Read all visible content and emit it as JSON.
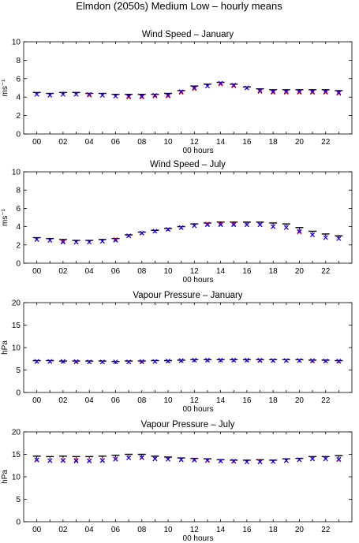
{
  "title": "Elmdon (2050s) Medium Low – hourly means",
  "chart_data": [
    {
      "type": "scatter",
      "title": "Wind Speed – January",
      "xlabel": "00 hours",
      "ylabel": "ms⁻¹",
      "ylim": [
        0,
        10
      ],
      "yticks": [
        0,
        2,
        4,
        6,
        8,
        10
      ],
      "xlim": [
        -1,
        24
      ],
      "x": [
        0,
        1,
        2,
        3,
        4,
        5,
        6,
        7,
        8,
        9,
        10,
        11,
        12,
        13,
        14,
        15,
        16,
        17,
        18,
        19,
        20,
        21,
        22,
        23
      ],
      "xtick_labels": [
        "00",
        "02",
        "04",
        "06",
        "08",
        "10",
        "12",
        "14",
        "16",
        "18",
        "20",
        "22"
      ],
      "series": [
        {
          "marker": "bar",
          "color": "#000000",
          "values": [
            4.5,
            4.4,
            4.5,
            4.5,
            4.4,
            4.4,
            4.3,
            4.3,
            4.3,
            4.3,
            4.4,
            4.7,
            5.2,
            5.4,
            5.6,
            5.4,
            5.1,
            4.9,
            4.8,
            4.8,
            4.8,
            4.8,
            4.8,
            4.7
          ]
        },
        {
          "marker": "x",
          "color": "#ff0000",
          "values": [
            4.3,
            4.2,
            4.3,
            4.3,
            4.2,
            4.2,
            4.1,
            4.0,
            4.0,
            4.1,
            4.1,
            4.5,
            4.9,
            5.2,
            5.4,
            5.2,
            5.0,
            4.6,
            4.5,
            4.5,
            4.5,
            4.5,
            4.5,
            4.4
          ]
        },
        {
          "marker": "x",
          "color": "#0000ff",
          "values": [
            4.3,
            4.2,
            4.3,
            4.3,
            4.3,
            4.2,
            4.1,
            4.1,
            4.1,
            4.2,
            4.2,
            4.6,
            5.0,
            5.2,
            5.5,
            5.3,
            5.0,
            4.7,
            4.6,
            4.6,
            4.6,
            4.6,
            4.6,
            4.5
          ]
        }
      ]
    },
    {
      "type": "scatter",
      "title": "Wind Speed – July",
      "xlabel": "00 hours",
      "ylabel": "ms⁻¹",
      "ylim": [
        0,
        10
      ],
      "yticks": [
        0,
        2,
        4,
        6,
        8,
        10
      ],
      "xlim": [
        -1,
        24
      ],
      "x": [
        0,
        1,
        2,
        3,
        4,
        5,
        6,
        7,
        8,
        9,
        10,
        11,
        12,
        13,
        14,
        15,
        16,
        17,
        18,
        19,
        20,
        21,
        22,
        23
      ],
      "xtick_labels": [
        "00",
        "02",
        "04",
        "06",
        "08",
        "10",
        "12",
        "14",
        "16",
        "18",
        "20",
        "22"
      ],
      "series": [
        {
          "marker": "bar",
          "color": "#000000",
          "values": [
            2.8,
            2.7,
            2.6,
            2.5,
            2.5,
            2.6,
            2.7,
            3.1,
            3.4,
            3.6,
            3.8,
            4.0,
            4.3,
            4.4,
            4.5,
            4.5,
            4.5,
            4.5,
            4.4,
            4.3,
            3.9,
            3.5,
            3.2,
            3.0
          ]
        },
        {
          "marker": "x",
          "color": "#ff0000",
          "values": [
            2.6,
            2.5,
            2.4,
            2.3,
            2.3,
            2.4,
            2.6,
            3.0,
            3.3,
            3.5,
            3.7,
            3.9,
            4.1,
            4.3,
            4.3,
            4.3,
            4.2,
            4.2,
            4.0,
            3.9,
            3.4,
            3.1,
            2.8,
            2.7
          ]
        },
        {
          "marker": "x",
          "color": "#0000ff",
          "values": [
            2.6,
            2.5,
            2.3,
            2.3,
            2.3,
            2.4,
            2.5,
            3.0,
            3.3,
            3.5,
            3.7,
            3.9,
            4.1,
            4.2,
            4.2,
            4.2,
            4.2,
            4.2,
            4.0,
            3.9,
            3.5,
            3.1,
            2.8,
            2.7
          ]
        }
      ]
    },
    {
      "type": "scatter",
      "title": "Vapour Pressure – January",
      "xlabel": "00 hours",
      "ylabel": "hPa",
      "ylim": [
        0,
        20
      ],
      "yticks": [
        0,
        5,
        10,
        15,
        20
      ],
      "xlim": [
        -1,
        24
      ],
      "x": [
        0,
        1,
        2,
        3,
        4,
        5,
        6,
        7,
        8,
        9,
        10,
        11,
        12,
        13,
        14,
        15,
        16,
        17,
        18,
        19,
        20,
        21,
        22,
        23
      ],
      "xtick_labels": [
        "00",
        "02",
        "04",
        "06",
        "08",
        "10",
        "12",
        "14",
        "16",
        "18",
        "20",
        "22"
      ],
      "series": [
        {
          "marker": "bar",
          "color": "#000000",
          "values": [
            7.1,
            7.1,
            7.0,
            7.0,
            7.0,
            7.0,
            6.9,
            7.0,
            7.0,
            7.1,
            7.1,
            7.2,
            7.3,
            7.3,
            7.3,
            7.3,
            7.3,
            7.3,
            7.3,
            7.3,
            7.3,
            7.2,
            7.2,
            7.1
          ]
        },
        {
          "marker": "x",
          "color": "#ff0000",
          "values": [
            6.9,
            6.9,
            6.9,
            6.8,
            6.8,
            6.8,
            6.8,
            6.8,
            6.8,
            6.9,
            7.0,
            7.1,
            7.2,
            7.2,
            7.2,
            7.2,
            7.2,
            7.1,
            7.1,
            7.1,
            7.1,
            7.0,
            7.0,
            6.9
          ]
        },
        {
          "marker": "x",
          "color": "#0000ff",
          "values": [
            6.9,
            6.9,
            6.9,
            6.9,
            6.8,
            6.8,
            6.8,
            6.8,
            6.9,
            6.9,
            7.0,
            7.1,
            7.2,
            7.2,
            7.2,
            7.2,
            7.2,
            7.2,
            7.1,
            7.1,
            7.1,
            7.1,
            7.0,
            7.0
          ]
        }
      ]
    },
    {
      "type": "scatter",
      "title": "Vapour Pressure – July",
      "xlabel": "00 hours",
      "ylabel": "hPa",
      "ylim": [
        0,
        20
      ],
      "yticks": [
        0,
        5,
        10,
        15,
        20
      ],
      "xlim": [
        -1,
        24
      ],
      "x": [
        0,
        1,
        2,
        3,
        4,
        5,
        6,
        7,
        8,
        9,
        10,
        11,
        12,
        13,
        14,
        15,
        16,
        17,
        18,
        19,
        20,
        21,
        22,
        23
      ],
      "xtick_labels": [
        "00",
        "02",
        "04",
        "06",
        "08",
        "10",
        "12",
        "14",
        "16",
        "18",
        "20",
        "22"
      ],
      "series": [
        {
          "marker": "bar",
          "color": "#000000",
          "values": [
            14.6,
            14.5,
            14.6,
            14.5,
            14.5,
            14.6,
            14.8,
            15.0,
            15.0,
            14.6,
            14.4,
            14.2,
            14.1,
            14.0,
            13.8,
            13.7,
            13.7,
            13.8,
            13.7,
            14.0,
            14.1,
            14.5,
            14.5,
            14.7
          ]
        },
        {
          "marker": "x",
          "color": "#ff0000",
          "values": [
            13.7,
            13.6,
            13.7,
            13.7,
            13.6,
            13.7,
            14.0,
            14.2,
            14.2,
            14.0,
            13.9,
            13.8,
            13.8,
            13.6,
            13.5,
            13.4,
            13.3,
            13.4,
            13.4,
            13.6,
            13.8,
            14.0,
            14.0,
            13.8
          ]
        },
        {
          "marker": "x",
          "color": "#0000ff",
          "values": [
            13.8,
            13.6,
            13.6,
            13.5,
            13.5,
            13.6,
            13.9,
            14.2,
            14.3,
            14.0,
            13.9,
            13.8,
            13.7,
            13.7,
            13.5,
            13.5,
            13.3,
            13.3,
            13.4,
            13.6,
            13.8,
            14.0,
            14.0,
            13.9
          ]
        }
      ]
    }
  ]
}
